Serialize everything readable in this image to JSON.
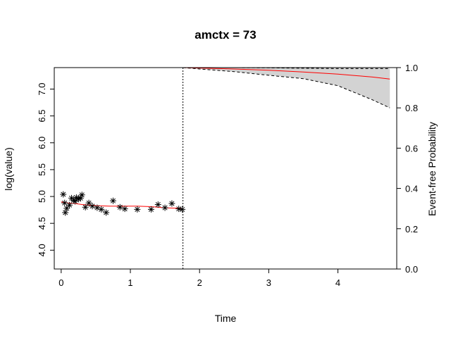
{
  "chart_data": {
    "type": "scatter",
    "title": "amctx = 73",
    "xlabel": "Time",
    "ylabel_left": "log(value)",
    "ylabel_right": "Event-free Probability",
    "xlim": [
      -0.1,
      4.85
    ],
    "ylim_left": [
      3.65,
      7.4
    ],
    "ylim_right": [
      0.0,
      1.0
    ],
    "x_ticks": [
      0,
      1,
      2,
      3,
      4
    ],
    "y_ticks_left": [
      4.0,
      4.5,
      5.0,
      5.5,
      6.0,
      6.5,
      7.0
    ],
    "y_ticks_right": [
      0.0,
      0.2,
      0.4,
      0.6,
      0.8,
      1.0
    ],
    "last_time": 1.76,
    "observed": {
      "x": [
        0.03,
        0.05,
        0.06,
        0.08,
        0.12,
        0.15,
        0.18,
        0.2,
        0.22,
        0.25,
        0.28,
        0.3,
        0.35,
        0.4,
        0.45,
        0.52,
        0.58,
        0.65,
        0.75,
        0.85,
        0.92,
        1.1,
        1.3,
        1.4,
        1.5,
        1.6,
        1.7,
        1.75
      ],
      "y": [
        5.04,
        4.88,
        4.7,
        4.78,
        4.84,
        4.97,
        4.93,
        4.91,
        4.98,
        4.95,
        4.97,
        5.03,
        4.8,
        4.88,
        4.82,
        4.79,
        4.76,
        4.7,
        4.92,
        4.8,
        4.77,
        4.76,
        4.76,
        4.85,
        4.79,
        4.87,
        4.77,
        4.76
      ]
    },
    "fitted": {
      "x": [
        0.0,
        0.1,
        0.2,
        0.3,
        0.4,
        0.5,
        0.7,
        0.9,
        1.1,
        1.3,
        1.5,
        1.7,
        1.76
      ],
      "y": [
        4.9,
        4.88,
        4.87,
        4.85,
        4.84,
        4.83,
        4.82,
        4.82,
        4.82,
        4.81,
        4.79,
        4.78,
        4.77
      ]
    },
    "survival": {
      "x": [
        1.76,
        2.0,
        2.5,
        3.0,
        3.5,
        4.0,
        4.5,
        4.75
      ],
      "mean": [
        1.0,
        0.998,
        0.993,
        0.987,
        0.978,
        0.968,
        0.953,
        0.943
      ],
      "lower": [
        1.0,
        0.993,
        0.98,
        0.962,
        0.945,
        0.91,
        0.84,
        0.8
      ],
      "upper": [
        1.0,
        1.0,
        1.0,
        0.999,
        0.997,
        0.995,
        0.995,
        0.995
      ]
    },
    "colors": {
      "fitted": "#ff0000",
      "survival_mean": "#ff0000",
      "band_fill": "#d3d3d3",
      "points": "#000000"
    }
  }
}
